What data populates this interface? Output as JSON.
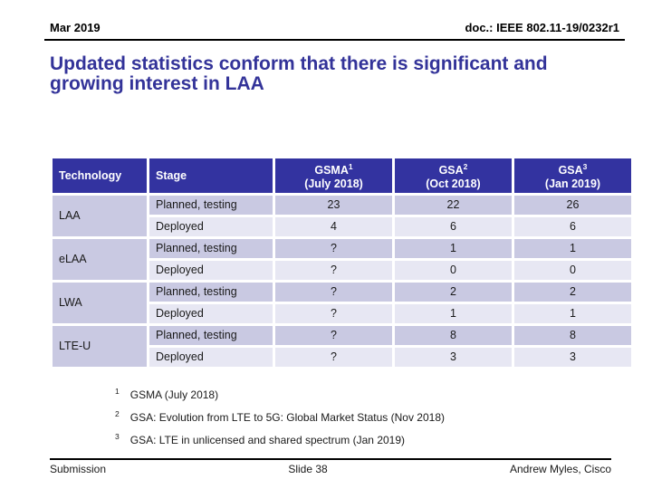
{
  "header": {
    "date": "Mar 2019",
    "doc": "doc.: IEEE 802.11-19/0232r1"
  },
  "title": "Updated statistics conform that there is significant and growing interest in LAA",
  "table": {
    "columns": [
      {
        "label": "Technology"
      },
      {
        "label": "Stage"
      },
      {
        "name": "GSMA",
        "sup": "1",
        "period": "(July 2018)"
      },
      {
        "name": "GSA",
        "sup": "2",
        "period": "(Oct 2018)"
      },
      {
        "name": "GSA",
        "sup": "3",
        "period": "(Jan 2019)"
      }
    ],
    "groups": [
      {
        "technology": "LAA",
        "rows": [
          {
            "stage": "Planned, testing",
            "values": [
              "23",
              "22",
              "26"
            ]
          },
          {
            "stage": "Deployed",
            "values": [
              "4",
              "6",
              "6"
            ]
          }
        ]
      },
      {
        "technology": "eLAA",
        "rows": [
          {
            "stage": "Planned, testing",
            "values": [
              "?",
              "1",
              "1"
            ]
          },
          {
            "stage": "Deployed",
            "values": [
              "?",
              "0",
              "0"
            ]
          }
        ]
      },
      {
        "technology": "LWA",
        "rows": [
          {
            "stage": "Planned, testing",
            "values": [
              "?",
              "2",
              "2"
            ]
          },
          {
            "stage": "Deployed",
            "values": [
              "?",
              "1",
              "1"
            ]
          }
        ]
      },
      {
        "technology": "LTE-U",
        "rows": [
          {
            "stage": "Planned, testing",
            "values": [
              "?",
              "8",
              "8"
            ]
          },
          {
            "stage": "Deployed",
            "values": [
              "?",
              "3",
              "3"
            ]
          }
        ]
      }
    ]
  },
  "footnotes": [
    {
      "sup": "1",
      "text": "GSMA (July 2018)"
    },
    {
      "sup": "2",
      "text": "GSA: Evolution from LTE to 5G: Global Market Status (Nov 2018)"
    },
    {
      "sup": "3",
      "text": "GSA: LTE in unlicensed and shared spectrum (Jan 2019)"
    }
  ],
  "footer": {
    "left": "Submission",
    "center": "Slide 38",
    "right": "Andrew Myles, Cisco"
  },
  "colors": {
    "title_text": "#333399",
    "table_header_bg": "#3333A0",
    "row_dark": "#C9C9E2",
    "row_light": "#E7E7F3",
    "rule": "#000000"
  }
}
